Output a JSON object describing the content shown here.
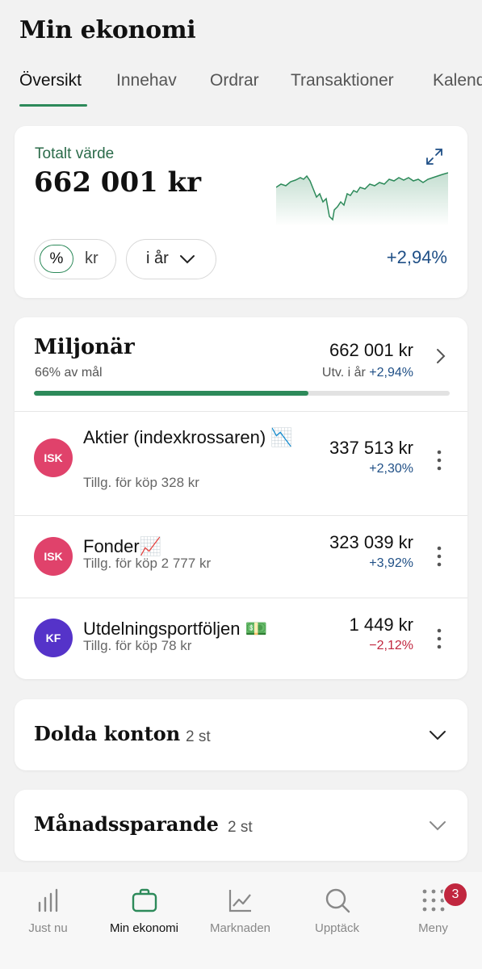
{
  "header": {
    "title": "Min ekonomi",
    "tabs": [
      {
        "label": "Översikt",
        "active": true
      },
      {
        "label": "Innehav"
      },
      {
        "label": "Ordrar"
      },
      {
        "label": "Transaktioner"
      },
      {
        "label": "Kalender"
      }
    ]
  },
  "total": {
    "label": "Totalt värde",
    "value": "662 001 kr",
    "unit_percent": "%",
    "unit_kr": "kr",
    "period": "i år",
    "change": "+2,94%",
    "expand_icon": "expand-icon"
  },
  "group": {
    "name": "Miljonär",
    "goal": "66% av mål",
    "goal_progress": 0.66,
    "value": "662 001 kr",
    "dev_label": "Utv. i år",
    "dev_value": "+2,94%",
    "accounts": [
      {
        "badge": "ISK",
        "badge_color": "#e0426b",
        "name": "Aktier (indexkrossaren) 📉",
        "sub": "Tillg. för köp 328 kr",
        "value": "337 513 kr",
        "change": "+2,30%",
        "dir": "pos"
      },
      {
        "badge": "ISK",
        "badge_color": "#e0426b",
        "name": "Fonder📈",
        "sub": "Tillg. för köp 2 777 kr",
        "value": "323 039 kr",
        "change": "+3,92%",
        "dir": "pos"
      },
      {
        "badge": "KF",
        "badge_color": "#5533c9",
        "name": "Utdelningsportföljen 💵",
        "sub": "Tillg. för köp 78 kr",
        "value": "1 449 kr",
        "change": "−2,12%",
        "dir": "neg"
      }
    ]
  },
  "hidden": {
    "title": "Dolda konton",
    "count": "2 st"
  },
  "monthly": {
    "title": "Månadssparande",
    "count": "2 st"
  },
  "nav": {
    "items": [
      {
        "label": "Just nu",
        "icon": "bar-chart-icon"
      },
      {
        "label": "Min ekonomi",
        "icon": "briefcase-icon",
        "active": true
      },
      {
        "label": "Marknaden",
        "icon": "line-chart-icon"
      },
      {
        "label": "Upptäck",
        "icon": "search-icon"
      },
      {
        "label": "Meny",
        "icon": "grid-dots-icon",
        "badge": "3"
      }
    ]
  },
  "colors": {
    "accent": "#2d8a5a",
    "positive": "#1f4f86",
    "negative": "#c1273f"
  }
}
